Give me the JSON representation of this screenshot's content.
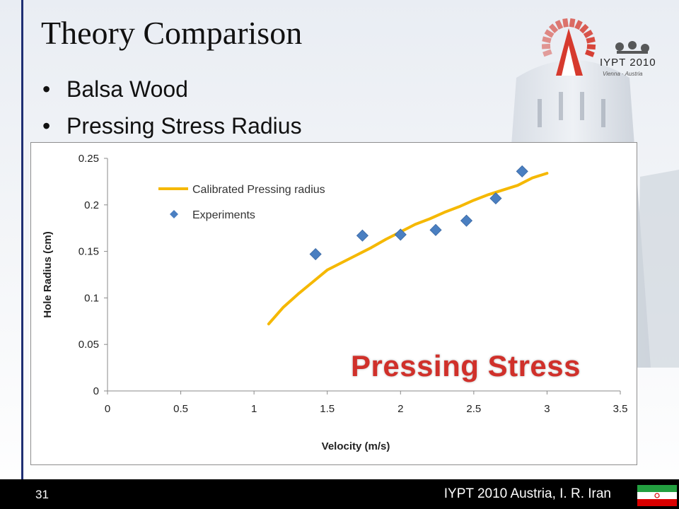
{
  "slide": {
    "title": "Theory Comparison",
    "bullets": [
      "Balsa Wood",
      "Pressing Stress Radius"
    ],
    "overlay_label": "Pressing Stress",
    "logo_text": "IYPT 2010",
    "logo_subtext": "Vienna · Austria",
    "page_number": "31",
    "footer_text": "IYPT 2010 Austria, I. R. Iran",
    "flag_icon": "iran-flag-icon",
    "logo_icon": "iypt-logo-icon"
  },
  "chart_data": {
    "type": "scatter",
    "title": "",
    "xlabel": "Velocity (m/s)",
    "ylabel": "Hole Radius (cm)",
    "xlim": [
      0,
      3.5
    ],
    "ylim": [
      0,
      0.25
    ],
    "x_ticks": [
      "0",
      "0.5",
      "1",
      "1.5",
      "2",
      "2.5",
      "3",
      "3.5"
    ],
    "y_ticks": [
      "0",
      "0.05",
      "0.1",
      "0.15",
      "0.2",
      "0.25"
    ],
    "grid": false,
    "legend_position": "top-left",
    "series": [
      {
        "name": "Calibrated Pressing radius",
        "type": "line",
        "color": "#f5b800",
        "x": [
          1.1,
          1.2,
          1.3,
          1.4,
          1.5,
          1.6,
          1.7,
          1.8,
          1.9,
          2.0,
          2.1,
          2.2,
          2.3,
          2.4,
          2.5,
          2.6,
          2.7,
          2.8,
          2.9,
          3.0
        ],
        "y": [
          0.072,
          0.09,
          0.104,
          0.117,
          0.13,
          0.138,
          0.146,
          0.154,
          0.163,
          0.171,
          0.179,
          0.185,
          0.192,
          0.198,
          0.205,
          0.211,
          0.216,
          0.221,
          0.229,
          0.234
        ]
      },
      {
        "name": "Experiments",
        "type": "scatter",
        "marker": "diamond",
        "color": "#4a7fc1",
        "x": [
          1.42,
          1.74,
          2.0,
          2.24,
          2.45,
          2.65,
          2.83
        ],
        "y": [
          0.147,
          0.167,
          0.168,
          0.173,
          0.183,
          0.207,
          0.236
        ]
      }
    ]
  }
}
